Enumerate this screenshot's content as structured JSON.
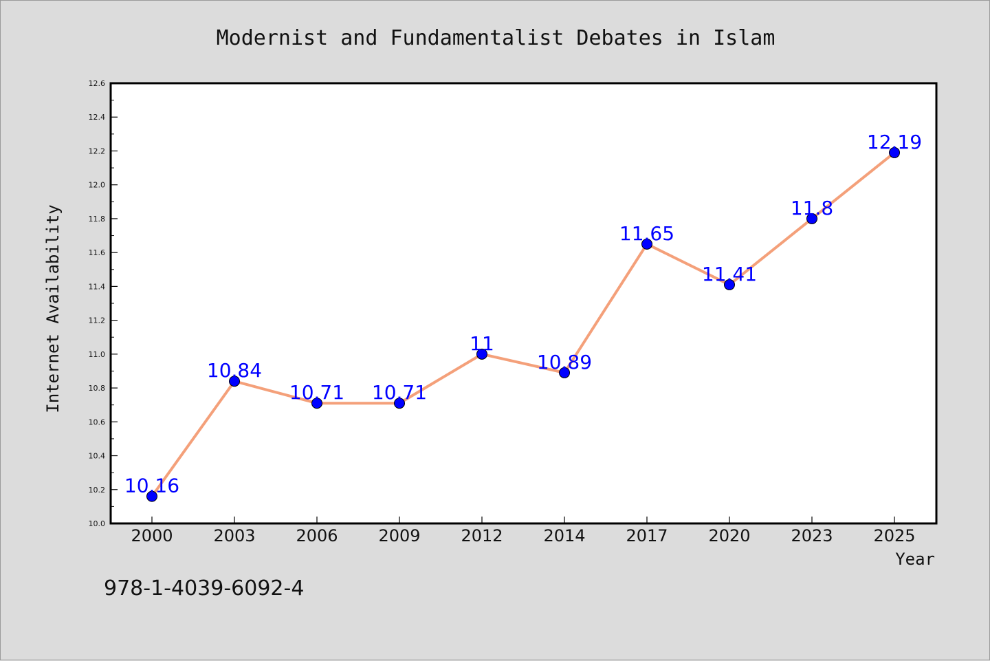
{
  "chart_data": {
    "type": "line",
    "title": "Modernist and Fundamentalist Debates in Islam",
    "xlabel": "Year",
    "ylabel": "Internet Availability",
    "categories": [
      "2000",
      "2003",
      "2006",
      "2009",
      "2012",
      "2014",
      "2017",
      "2020",
      "2023",
      "2025"
    ],
    "series": [
      {
        "values": [
          10.16,
          10.84,
          10.71,
          10.71,
          11,
          10.89,
          11.65,
          11.41,
          11.8,
          12.19
        ],
        "data_labels": [
          "10.16",
          "10.84",
          "10.71",
          "10.71",
          "11",
          "10.89",
          "11.65",
          "11.41",
          "11.8",
          "12.19"
        ],
        "line_color": "#f4a07a",
        "marker_color": "#0000ff"
      }
    ],
    "ylim": [
      10.0,
      12.6
    ],
    "yticks": [
      "10.0",
      "10.2",
      "10.4",
      "10.6",
      "10.8",
      "11.0",
      "11.2",
      "11.4",
      "11.6",
      "11.8",
      "12.0",
      "12.2",
      "12.4",
      "12.6"
    ],
    "grid": false,
    "legend": "none",
    "background_color": "#dcdcdc",
    "plot_background_color": "#ffffff"
  },
  "footer": {
    "isbn": "978-1-4039-6092-4"
  }
}
